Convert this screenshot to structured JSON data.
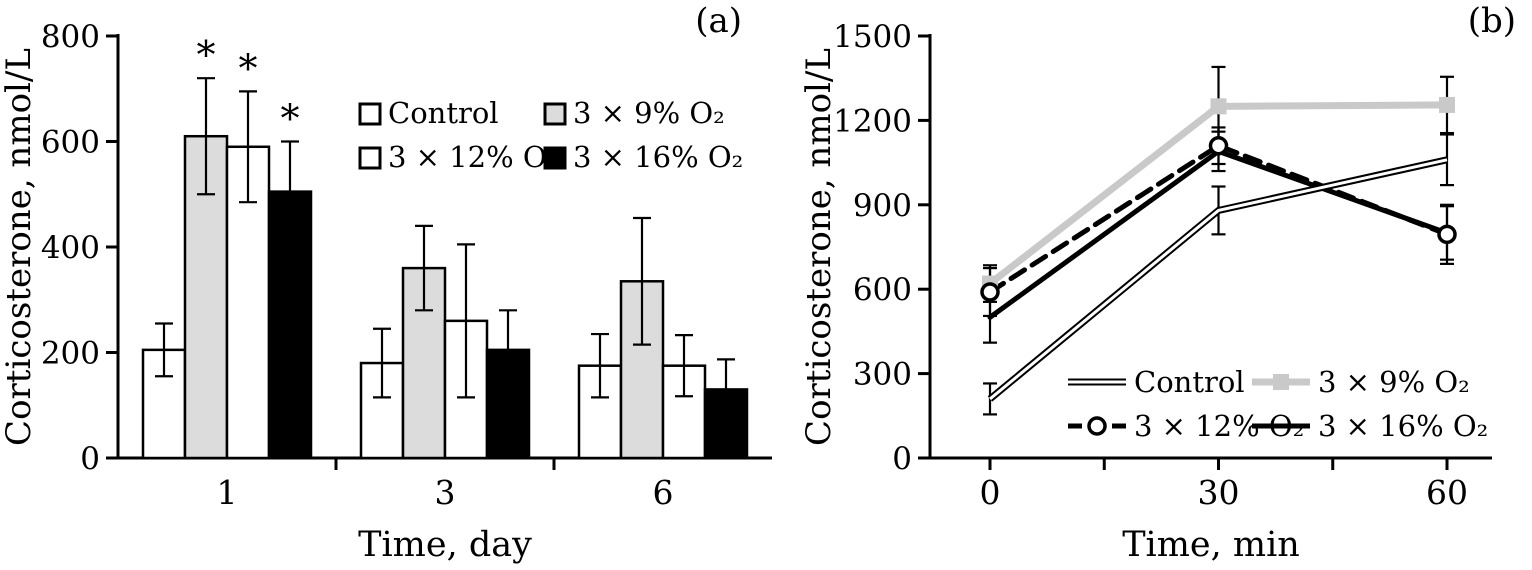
{
  "figure": {
    "background": "#ffffff",
    "text_color": "#000000",
    "error_bar_color": "#000000"
  },
  "chart_data": [
    {
      "type": "bar",
      "panel_label": "(a)",
      "xlabel": "Time, day",
      "ylabel": "Corticosterone, nmol/L",
      "ylim": [
        0,
        800
      ],
      "yticks": [
        0,
        200,
        400,
        600,
        800
      ],
      "categories": [
        "1",
        "3",
        "6"
      ],
      "grid": false,
      "legend_position": "inside-top-right",
      "significance_marker": "*",
      "series": [
        {
          "name": "Control",
          "fill": "#ffffff",
          "values": [
            205,
            180,
            175
          ],
          "errors": [
            50,
            65,
            60
          ],
          "significant": [
            false,
            false,
            false
          ]
        },
        {
          "name": "3 × 9% O₂",
          "fill": "#dcdcdc",
          "values": [
            610,
            360,
            335
          ],
          "errors": [
            110,
            80,
            120
          ],
          "significant": [
            true,
            false,
            false
          ]
        },
        {
          "name": "3 × 12% O₂",
          "fill": "#ffffff",
          "values": [
            590,
            260,
            175
          ],
          "errors": [
            105,
            145,
            58
          ],
          "significant": [
            true,
            false,
            false
          ]
        },
        {
          "name": "3 × 16% O₂",
          "fill": "#000000",
          "values": [
            505,
            205,
            130
          ],
          "errors": [
            95,
            75,
            57
          ],
          "significant": [
            true,
            false,
            false
          ]
        }
      ]
    },
    {
      "type": "line",
      "panel_label": "(b)",
      "xlabel": "Time, min",
      "ylabel": "Corticosterone, nmol/L",
      "ylim": [
        0,
        1500
      ],
      "yticks": [
        0,
        300,
        600,
        900,
        1200,
        1500
      ],
      "x": [
        0,
        30,
        60
      ],
      "xtick_labels": [
        "0",
        "30",
        "60"
      ],
      "xticks_minor": [
        15,
        45
      ],
      "grid": false,
      "legend_position": "inside-bottom-right",
      "series": [
        {
          "name": "Control",
          "color": "#000000",
          "line_style": "double",
          "marker": "none",
          "values": [
            210,
            880,
            1060
          ],
          "errors": [
            55,
            85,
            90
          ]
        },
        {
          "name": "3 × 9% O₂",
          "color": "#c9c9c9",
          "line_style": "solid-thick",
          "marker": "square",
          "values": [
            620,
            1250,
            1255
          ],
          "errors": [
            65,
            140,
            100
          ]
        },
        {
          "name": "3 × 12% O₂",
          "color": "#000000",
          "line_style": "dashed",
          "marker": "circle-open",
          "values": [
            590,
            1110,
            795
          ],
          "errors": [
            85,
            65,
            105
          ]
        },
        {
          "name": "3 × 16% O₂",
          "color": "#000000",
          "line_style": "solid-thick",
          "marker": "none",
          "values": [
            500,
            1090,
            800
          ],
          "errors": [
            90,
            70,
            95
          ]
        }
      ]
    }
  ]
}
